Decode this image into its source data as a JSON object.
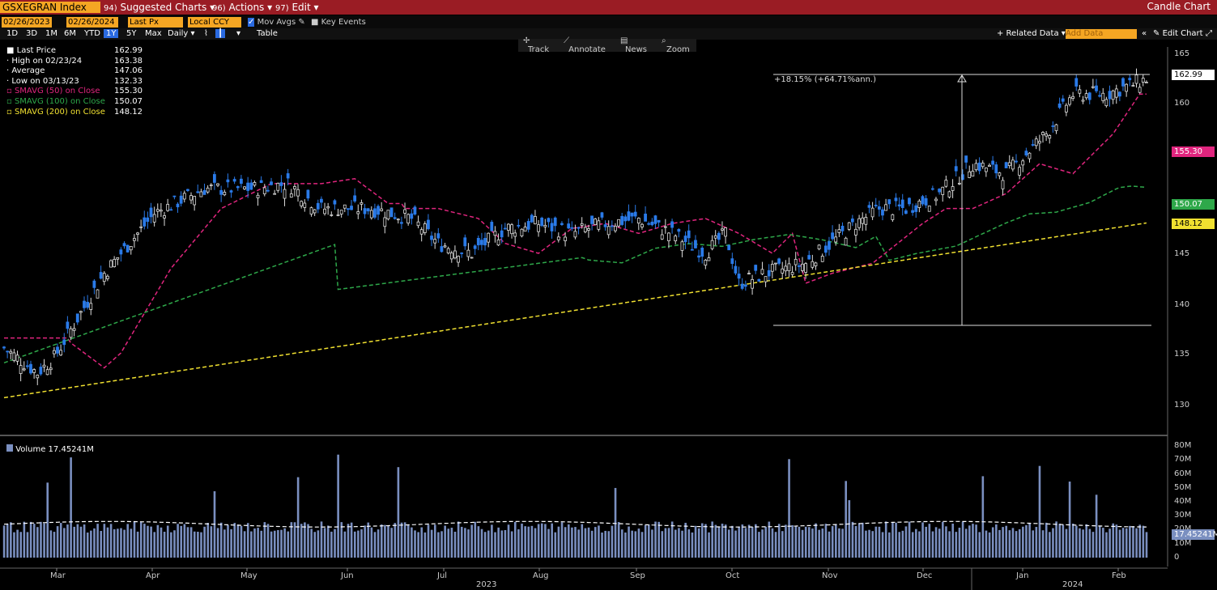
{
  "header": {
    "ticker": "GSXEGRAN Index",
    "menu": [
      {
        "num": "94)",
        "label": "Suggested Charts"
      },
      {
        "num": "96)",
        "label": "Actions"
      },
      {
        "num": "97)",
        "label": "Edit"
      }
    ],
    "title": "Candle Chart"
  },
  "fields": {
    "start": "02/26/2023",
    "end": "02/26/2024",
    "price": "Last Px",
    "ccy": "Local CCY",
    "mov": "Mov Avgs",
    "key": "Key Events"
  },
  "periods": [
    "1D",
    "3D",
    "1M",
    "6M",
    "YTD",
    "1Y",
    "5Y",
    "Max"
  ],
  "freq": "Daily",
  "table": "Table",
  "right": {
    "related": "+ Related Data",
    "add": "Add Data",
    "edit": "Edit Chart"
  },
  "tools": [
    "Track",
    "Annotate",
    "News",
    "Zoom"
  ],
  "legend": [
    {
      "l": "Last Price",
      "v": "162.99",
      "c": "#ffffff"
    },
    {
      "l": "High on 02/23/24",
      "v": "163.38",
      "c": "#ddd"
    },
    {
      "l": "Average",
      "v": "147.06",
      "c": "#ddd"
    },
    {
      "l": "Low on 03/13/23",
      "v": "132.33",
      "c": "#ddd"
    },
    {
      "l": "SMAVG (50)  on Close",
      "v": "155.30",
      "c": "#e0257e"
    },
    {
      "l": "SMAVG (100)  on Close",
      "v": "150.07",
      "c": "#2ea84a"
    },
    {
      "l": "SMAVG (200)  on Close",
      "v": "148.12",
      "c": "#f0e030"
    }
  ],
  "annotation": "+18.15% (+64.71%ann.)",
  "yaxis": [
    "165",
    "160",
    "155",
    "150",
    "145",
    "140",
    "135",
    "130"
  ],
  "tags": [
    {
      "v": "162.99",
      "bg": "#ffffff",
      "fg": "#000"
    },
    {
      "v": "155.30",
      "bg": "#e0257e",
      "fg": "#fff"
    },
    {
      "v": "150.07",
      "bg": "#2ea84a",
      "fg": "#fff"
    },
    {
      "v": "148.12",
      "bg": "#f0e030",
      "fg": "#000"
    }
  ],
  "volume": {
    "label": "Volume 17.45241M",
    "axis": [
      "80M",
      "70M",
      "60M",
      "50M",
      "40M",
      "30M",
      "20M",
      "10M",
      "0"
    ],
    "tag": "17.45241M"
  },
  "xaxis": [
    "Mar",
    "Apr",
    "May",
    "Jun",
    "Jul",
    "Aug",
    "Sep",
    "Oct",
    "Nov",
    "Dec",
    "Jan",
    "Feb"
  ],
  "years": [
    "2023",
    "2024"
  ]
}
